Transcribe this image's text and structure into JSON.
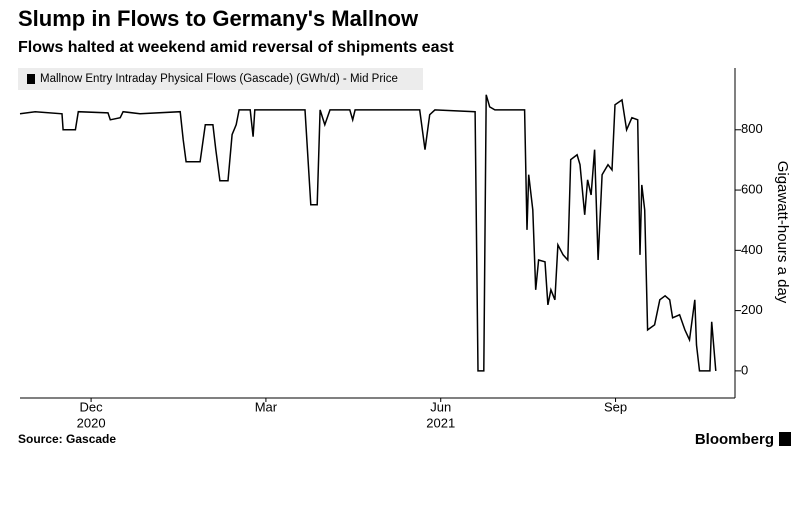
{
  "chart_data": {
    "type": "line",
    "title": "Slump in Flows to Germany's Mallnow",
    "subtitle": "Flows halted at weekend amid reversal of shipments east",
    "y_label": "Gigawatt-hours a day",
    "source": "Source: Gascade",
    "brand": "Bloomberg",
    "legend_position": "top-left",
    "series": [
      {
        "name": "Mallnow Entry Intraday Physical Flows (Gascade) (GWh/d) - Mid Price",
        "color": "#000000",
        "x": [
          10.78,
          11.04,
          11.5,
          11.52,
          11.73,
          11.78,
          12.29,
          12.33,
          12.5,
          12.55,
          12.84,
          13.53,
          13.58,
          13.63,
          13.87,
          13.96,
          14.09,
          14.14,
          14.21,
          14.35,
          14.42,
          14.49,
          14.54,
          14.73,
          14.78,
          14.81,
          15.67,
          15.77,
          15.88,
          15.93,
          16.01,
          16.1,
          16.44,
          16.49,
          16.53,
          17.64,
          17.73,
          17.81,
          17.9,
          18.59,
          18.64,
          18.74,
          18.78,
          18.84,
          18.93,
          19.44,
          19.48,
          19.51,
          19.58,
          19.63,
          19.68,
          19.79,
          19.84,
          19.89,
          19.96,
          20.01,
          20.1,
          20.18,
          20.23,
          20.34,
          20.39,
          20.47,
          20.52,
          20.58,
          20.64,
          20.7,
          20.77,
          20.87,
          20.94,
          20.99,
          21.11,
          21.19,
          21.28,
          21.38,
          21.42,
          21.45,
          21.5,
          21.55,
          21.67,
          21.76,
          21.85,
          21.93,
          21.98,
          22.1,
          22.19,
          22.27,
          22.36,
          22.39,
          22.44,
          22.62,
          22.65,
          22.72
        ],
        "values": [
          853,
          860,
          853,
          800,
          800,
          860,
          856,
          833,
          840,
          860,
          853,
          860,
          767,
          694,
          694,
          817,
          817,
          734,
          631,
          631,
          784,
          817,
          866,
          866,
          777,
          866,
          866,
          551,
          551,
          866,
          817,
          866,
          866,
          833,
          866,
          866,
          734,
          850,
          866,
          860,
          0,
          0,
          916,
          876,
          866,
          866,
          468,
          651,
          534,
          269,
          368,
          362,
          219,
          269,
          236,
          418,
          385,
          368,
          701,
          717,
          684,
          518,
          634,
          584,
          734,
          368,
          651,
          684,
          667,
          883,
          899,
          800,
          840,
          833,
          385,
          617,
          534,
          136,
          153,
          236,
          249,
          236,
          176,
          186,
          136,
          103,
          236,
          86,
          0,
          0,
          163,
          0
        ]
      }
    ],
    "xlim": [
      10.78,
      23.05
    ],
    "xticks": [
      {
        "value": 12,
        "label": "Dec"
      },
      {
        "value": 15,
        "label": "Mar"
      },
      {
        "value": 18,
        "label": "Jun"
      },
      {
        "value": 21,
        "label": "Sep"
      }
    ],
    "x_year_labels": [
      {
        "value": 12,
        "label": "2020"
      },
      {
        "value": 18,
        "label": "2021"
      }
    ],
    "ylim": [
      -90,
      1005
    ],
    "yticks": [
      0,
      200,
      400,
      600,
      800
    ],
    "y_axis_side": "right"
  }
}
